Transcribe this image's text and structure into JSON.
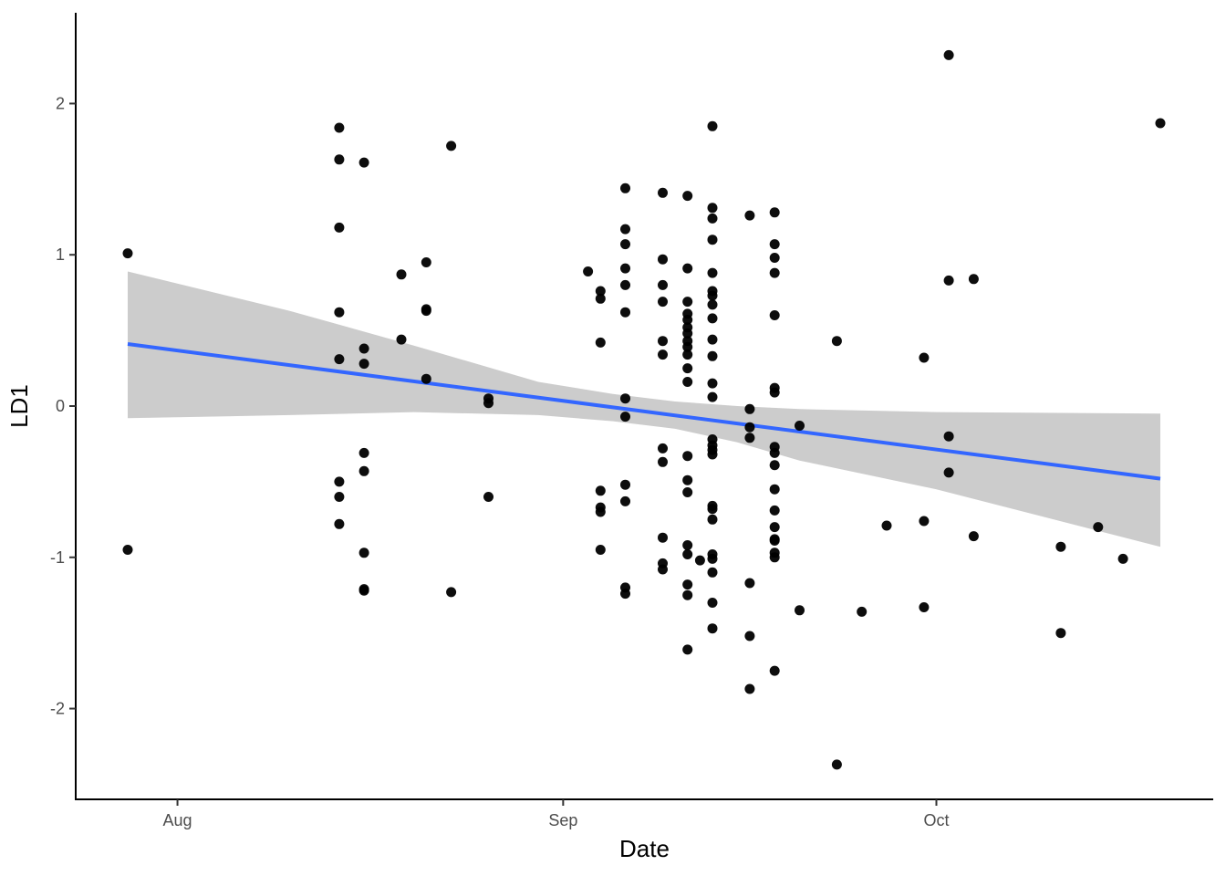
{
  "chart_data": {
    "type": "scatter",
    "title": "",
    "xlabel": "Date",
    "ylabel": "LD1",
    "x_scale": "date",
    "xlim": [
      "2023-07-28",
      "2023-10-19"
    ],
    "ylim": [
      -2.6,
      2.6
    ],
    "x_ticks": [
      {
        "date": "2023-08-01",
        "label": "Aug"
      },
      {
        "date": "2023-09-01",
        "label": "Sep"
      },
      {
        "date": "2023-10-01",
        "label": "Oct"
      }
    ],
    "y_ticks": [
      {
        "value": -2,
        "label": "-2"
      },
      {
        "value": -1,
        "label": "-1"
      },
      {
        "value": 0,
        "label": "0"
      },
      {
        "value": 1,
        "label": "1"
      },
      {
        "value": 2,
        "label": "2"
      }
    ],
    "grid": false,
    "legend": "none",
    "point_color": "#000000",
    "line_color": "#3366ff",
    "ribbon_color": "#cccccc",
    "trend_line": [
      {
        "x": "2023-07-28",
        "y": 0.41
      },
      {
        "x": "2023-10-19",
        "y": -0.48
      }
    ],
    "confidence_band": [
      {
        "x": "2023-07-28",
        "lower": -0.08,
        "upper": 0.89
      },
      {
        "x": "2023-08-10",
        "lower": -0.06,
        "upper": 0.63
      },
      {
        "x": "2023-08-20",
        "lower": -0.04,
        "upper": 0.4
      },
      {
        "x": "2023-08-30",
        "lower": -0.06,
        "upper": 0.16
      },
      {
        "x": "2023-09-05",
        "lower": -0.1,
        "upper": 0.08
      },
      {
        "x": "2023-09-10",
        "lower": -0.15,
        "upper": 0.03
      },
      {
        "x": "2023-09-15",
        "lower": -0.24,
        "upper": 0.0
      },
      {
        "x": "2023-09-20",
        "lower": -0.36,
        "upper": -0.02
      },
      {
        "x": "2023-10-01",
        "lower": -0.55,
        "upper": -0.04
      },
      {
        "x": "2023-10-19",
        "lower": -0.93,
        "upper": -0.05
      }
    ],
    "points": [
      {
        "x": "2023-07-28",
        "y": 1.01
      },
      {
        "x": "2023-07-28",
        "y": -0.95
      },
      {
        "x": "2023-08-14",
        "y": 1.84
      },
      {
        "x": "2023-08-14",
        "y": 1.63
      },
      {
        "x": "2023-08-14",
        "y": 1.18
      },
      {
        "x": "2023-08-14",
        "y": 0.62
      },
      {
        "x": "2023-08-14",
        "y": 0.31
      },
      {
        "x": "2023-08-14",
        "y": -0.5
      },
      {
        "x": "2023-08-14",
        "y": -0.6
      },
      {
        "x": "2023-08-14",
        "y": -0.78
      },
      {
        "x": "2023-08-16",
        "y": 1.61
      },
      {
        "x": "2023-08-16",
        "y": 0.38
      },
      {
        "x": "2023-08-16",
        "y": 0.28
      },
      {
        "x": "2023-08-16",
        "y": -0.31
      },
      {
        "x": "2023-08-16",
        "y": -0.43
      },
      {
        "x": "2023-08-16",
        "y": -0.97
      },
      {
        "x": "2023-08-16",
        "y": -1.21
      },
      {
        "x": "2023-08-16",
        "y": -1.22
      },
      {
        "x": "2023-08-19",
        "y": 0.87
      },
      {
        "x": "2023-08-19",
        "y": 0.44
      },
      {
        "x": "2023-08-21",
        "y": 0.95
      },
      {
        "x": "2023-08-21",
        "y": 0.64
      },
      {
        "x": "2023-08-21",
        "y": 0.63
      },
      {
        "x": "2023-08-21",
        "y": 0.18
      },
      {
        "x": "2023-08-23",
        "y": 1.72
      },
      {
        "x": "2023-08-23",
        "y": -1.23
      },
      {
        "x": "2023-08-26",
        "y": 0.05
      },
      {
        "x": "2023-08-26",
        "y": 0.02
      },
      {
        "x": "2023-08-26",
        "y": -0.6
      },
      {
        "x": "2023-09-03",
        "y": 0.89
      },
      {
        "x": "2023-09-04",
        "y": 0.76
      },
      {
        "x": "2023-09-04",
        "y": 0.71
      },
      {
        "x": "2023-09-04",
        "y": 0.42
      },
      {
        "x": "2023-09-04",
        "y": -0.56
      },
      {
        "x": "2023-09-04",
        "y": -0.67
      },
      {
        "x": "2023-09-04",
        "y": -0.7
      },
      {
        "x": "2023-09-04",
        "y": -0.95
      },
      {
        "x": "2023-09-06",
        "y": 1.44
      },
      {
        "x": "2023-09-06",
        "y": 1.17
      },
      {
        "x": "2023-09-06",
        "y": 1.07
      },
      {
        "x": "2023-09-06",
        "y": 0.91
      },
      {
        "x": "2023-09-06",
        "y": 0.8
      },
      {
        "x": "2023-09-06",
        "y": 0.62
      },
      {
        "x": "2023-09-06",
        "y": 0.05
      },
      {
        "x": "2023-09-06",
        "y": -0.07
      },
      {
        "x": "2023-09-06",
        "y": -0.52
      },
      {
        "x": "2023-09-06",
        "y": -0.63
      },
      {
        "x": "2023-09-06",
        "y": -1.2
      },
      {
        "x": "2023-09-06",
        "y": -1.24
      },
      {
        "x": "2023-09-09",
        "y": 1.41
      },
      {
        "x": "2023-09-09",
        "y": 0.97
      },
      {
        "x": "2023-09-09",
        "y": 0.8
      },
      {
        "x": "2023-09-09",
        "y": 0.69
      },
      {
        "x": "2023-09-09",
        "y": 0.43
      },
      {
        "x": "2023-09-09",
        "y": 0.34
      },
      {
        "x": "2023-09-09",
        "y": -0.28
      },
      {
        "x": "2023-09-09",
        "y": -0.37
      },
      {
        "x": "2023-09-09",
        "y": -0.87
      },
      {
        "x": "2023-09-09",
        "y": -1.04
      },
      {
        "x": "2023-09-09",
        "y": -1.08
      },
      {
        "x": "2023-09-11",
        "y": 1.39
      },
      {
        "x": "2023-09-11",
        "y": 0.91
      },
      {
        "x": "2023-09-11",
        "y": 0.69
      },
      {
        "x": "2023-09-11",
        "y": 0.61
      },
      {
        "x": "2023-09-11",
        "y": 0.57
      },
      {
        "x": "2023-09-11",
        "y": 0.52
      },
      {
        "x": "2023-09-11",
        "y": 0.48
      },
      {
        "x": "2023-09-11",
        "y": 0.43
      },
      {
        "x": "2023-09-11",
        "y": 0.39
      },
      {
        "x": "2023-09-11",
        "y": 0.34
      },
      {
        "x": "2023-09-11",
        "y": 0.25
      },
      {
        "x": "2023-09-11",
        "y": 0.16
      },
      {
        "x": "2023-09-11",
        "y": -0.33
      },
      {
        "x": "2023-09-11",
        "y": -0.49
      },
      {
        "x": "2023-09-11",
        "y": -0.57
      },
      {
        "x": "2023-09-11",
        "y": -0.92
      },
      {
        "x": "2023-09-11",
        "y": -0.98
      },
      {
        "x": "2023-09-11",
        "y": -1.18
      },
      {
        "x": "2023-09-11",
        "y": -1.25
      },
      {
        "x": "2023-09-11",
        "y": -1.61
      },
      {
        "x": "2023-09-12",
        "y": -1.02
      },
      {
        "x": "2023-09-13",
        "y": 1.85
      },
      {
        "x": "2023-09-13",
        "y": 1.31
      },
      {
        "x": "2023-09-13",
        "y": 1.24
      },
      {
        "x": "2023-09-13",
        "y": 1.1
      },
      {
        "x": "2023-09-13",
        "y": 0.88
      },
      {
        "x": "2023-09-13",
        "y": 0.76
      },
      {
        "x": "2023-09-13",
        "y": 0.73
      },
      {
        "x": "2023-09-13",
        "y": 0.67
      },
      {
        "x": "2023-09-13",
        "y": 0.58
      },
      {
        "x": "2023-09-13",
        "y": 0.44
      },
      {
        "x": "2023-09-13",
        "y": 0.33
      },
      {
        "x": "2023-09-13",
        "y": 0.15
      },
      {
        "x": "2023-09-13",
        "y": 0.06
      },
      {
        "x": "2023-09-13",
        "y": -0.22
      },
      {
        "x": "2023-09-13",
        "y": -0.26
      },
      {
        "x": "2023-09-13",
        "y": -0.29
      },
      {
        "x": "2023-09-13",
        "y": -0.32
      },
      {
        "x": "2023-09-13",
        "y": -0.66
      },
      {
        "x": "2023-09-13",
        "y": -0.68
      },
      {
        "x": "2023-09-13",
        "y": -0.75
      },
      {
        "x": "2023-09-13",
        "y": -0.98
      },
      {
        "x": "2023-09-13",
        "y": -1.01
      },
      {
        "x": "2023-09-13",
        "y": -1.1
      },
      {
        "x": "2023-09-13",
        "y": -1.3
      },
      {
        "x": "2023-09-13",
        "y": -1.47
      },
      {
        "x": "2023-09-16",
        "y": 1.26
      },
      {
        "x": "2023-09-16",
        "y": -0.02
      },
      {
        "x": "2023-09-16",
        "y": -0.14
      },
      {
        "x": "2023-09-16",
        "y": -0.21
      },
      {
        "x": "2023-09-16",
        "y": -1.17
      },
      {
        "x": "2023-09-16",
        "y": -1.52
      },
      {
        "x": "2023-09-16",
        "y": -1.87
      },
      {
        "x": "2023-09-18",
        "y": 1.28
      },
      {
        "x": "2023-09-18",
        "y": 1.07
      },
      {
        "x": "2023-09-18",
        "y": 0.98
      },
      {
        "x": "2023-09-18",
        "y": 0.88
      },
      {
        "x": "2023-09-18",
        "y": 0.6
      },
      {
        "x": "2023-09-18",
        "y": 0.12
      },
      {
        "x": "2023-09-18",
        "y": 0.09
      },
      {
        "x": "2023-09-18",
        "y": -0.27
      },
      {
        "x": "2023-09-18",
        "y": -0.31
      },
      {
        "x": "2023-09-18",
        "y": -0.39
      },
      {
        "x": "2023-09-18",
        "y": -0.55
      },
      {
        "x": "2023-09-18",
        "y": -0.69
      },
      {
        "x": "2023-09-18",
        "y": -0.8
      },
      {
        "x": "2023-09-18",
        "y": -0.88
      },
      {
        "x": "2023-09-18",
        "y": -0.89
      },
      {
        "x": "2023-09-18",
        "y": -0.97
      },
      {
        "x": "2023-09-18",
        "y": -1.0
      },
      {
        "x": "2023-09-18",
        "y": -1.75
      },
      {
        "x": "2023-09-20",
        "y": -0.13
      },
      {
        "x": "2023-09-20",
        "y": -1.35
      },
      {
        "x": "2023-09-23",
        "y": 0.43
      },
      {
        "x": "2023-09-23",
        "y": -2.37
      },
      {
        "x": "2023-09-25",
        "y": -1.36
      },
      {
        "x": "2023-09-27",
        "y": -0.79
      },
      {
        "x": "2023-09-30",
        "y": 0.32
      },
      {
        "x": "2023-09-30",
        "y": -0.76
      },
      {
        "x": "2023-09-30",
        "y": -1.33
      },
      {
        "x": "2023-10-02",
        "y": 2.32
      },
      {
        "x": "2023-10-02",
        "y": 0.83
      },
      {
        "x": "2023-10-02",
        "y": -0.2
      },
      {
        "x": "2023-10-02",
        "y": -0.44
      },
      {
        "x": "2023-10-04",
        "y": 0.84
      },
      {
        "x": "2023-10-04",
        "y": -0.86
      },
      {
        "x": "2023-10-11",
        "y": -0.93
      },
      {
        "x": "2023-10-11",
        "y": -1.5
      },
      {
        "x": "2023-10-14",
        "y": -0.8
      },
      {
        "x": "2023-10-16",
        "y": -1.01
      },
      {
        "x": "2023-10-19",
        "y": 1.87
      }
    ]
  }
}
